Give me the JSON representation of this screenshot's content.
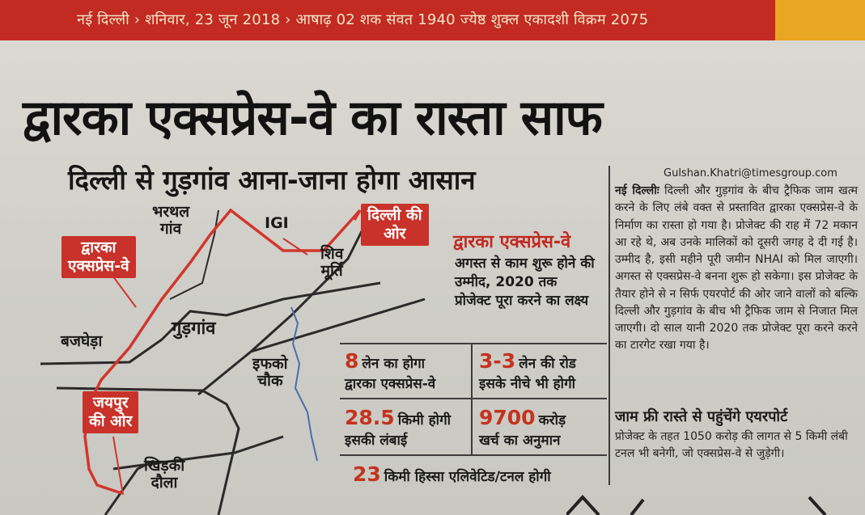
{
  "header": {
    "dateline": "नई दिल्ली › शनिवार, 23 जून 2018 › आषाढ़ 02 शक संवत 1940 ज्येष्ठ शुक्ल एकादशी विक्रम 2075",
    "accent_color": "#c22a22",
    "strip_color": "#e9a623"
  },
  "headline": "द्वारका एक्सप्रेस-वे का रास्ता साफ",
  "subheadline": "दिल्ली से गुड़गांव आना-जाना होगा आसान",
  "map": {
    "labels": {
      "bharthal": "भरथल\nगांव",
      "igi": "IGI",
      "shiv_murti": "शिव\nमूर्ति",
      "gurgaon": "गुड़गांव",
      "bajghera": "बजघेड़ा",
      "iffco_chowk": "इफको\nचौक",
      "khirki_daula": "खिड़की\nदौला"
    },
    "tags": {
      "dwarka_expressway": "द्वारका\nएक्सप्रेस-वे",
      "delhi_side": "दिल्ली की\nओर",
      "jaipur_side": "जयपुर\nकी ओर"
    }
  },
  "facts": {
    "title": "द्वारका एक्सप्रेस-वे",
    "lead": "अगस्त से काम शुरू होने की उम्मीद, 2020 तक प्रोजेक्ट पूरा करने का लक्ष्य",
    "items": [
      {
        "number": "8",
        "line1": "लेन का होगा",
        "line2": "द्वारका एक्सप्रेस-वे"
      },
      {
        "number": "3-3",
        "line1": "लेन की रोड",
        "line2": "इसके नीचे भी होगी"
      },
      {
        "number": "28.5",
        "line1": "किमी होगी",
        "line2": "इसकी लंबाई"
      },
      {
        "number": "9700",
        "line1": "करोड़",
        "line2": "खर्च का अनुमान"
      },
      {
        "number": "23",
        "line1": "किमी हिस्सा एलिवेटिड/टनल होगी",
        "line2": ""
      }
    ]
  },
  "article": {
    "byline": "Gulshan.Khatri@timesgroup.com",
    "dateline": "नई दिल्लीः",
    "body": "दिल्ली और गुड़गांव के बीच ट्रैफिक जाम खत्म करने के लिए लंबे वक्त से प्रस्तावित द्वारका एक्सप्रेस-वे के निर्माण का रास्ता हो गया है। प्रोजेक्ट की राह में 72 मकान आ रहे थे, अब उनके मालिकों को दूसरी जगह दे दी गई है। उम्मीद है, इसी महीने पूरी जमीन NHAI को मिल जाएगी। अगस्त से एक्सप्रेस-वे बनना शुरू हो सकेगा। इस प्रोजेक्ट के तैयार होने से न सिर्फ एयरपोर्ट की ओर जाने वालों को बल्कि दिल्ली और गुड़गांव के बीच भी ट्रैफिक जाम से निजात मिल जाएगी। दो साल यानी 2020 तक प्रोजेक्ट पूरा करने करने का टारगेट रखा गया है।",
    "subhead": "जाम फ्री रास्ते से पहुंचेंगे एयरपोर्ट",
    "body2": "प्रोजेक्ट के तहत 1050 करोड़ की लागत से 5 किमी लंबी टनल भी बनेगी, जो एक्सप्रेस-वे से जुड़ेगी।"
  }
}
